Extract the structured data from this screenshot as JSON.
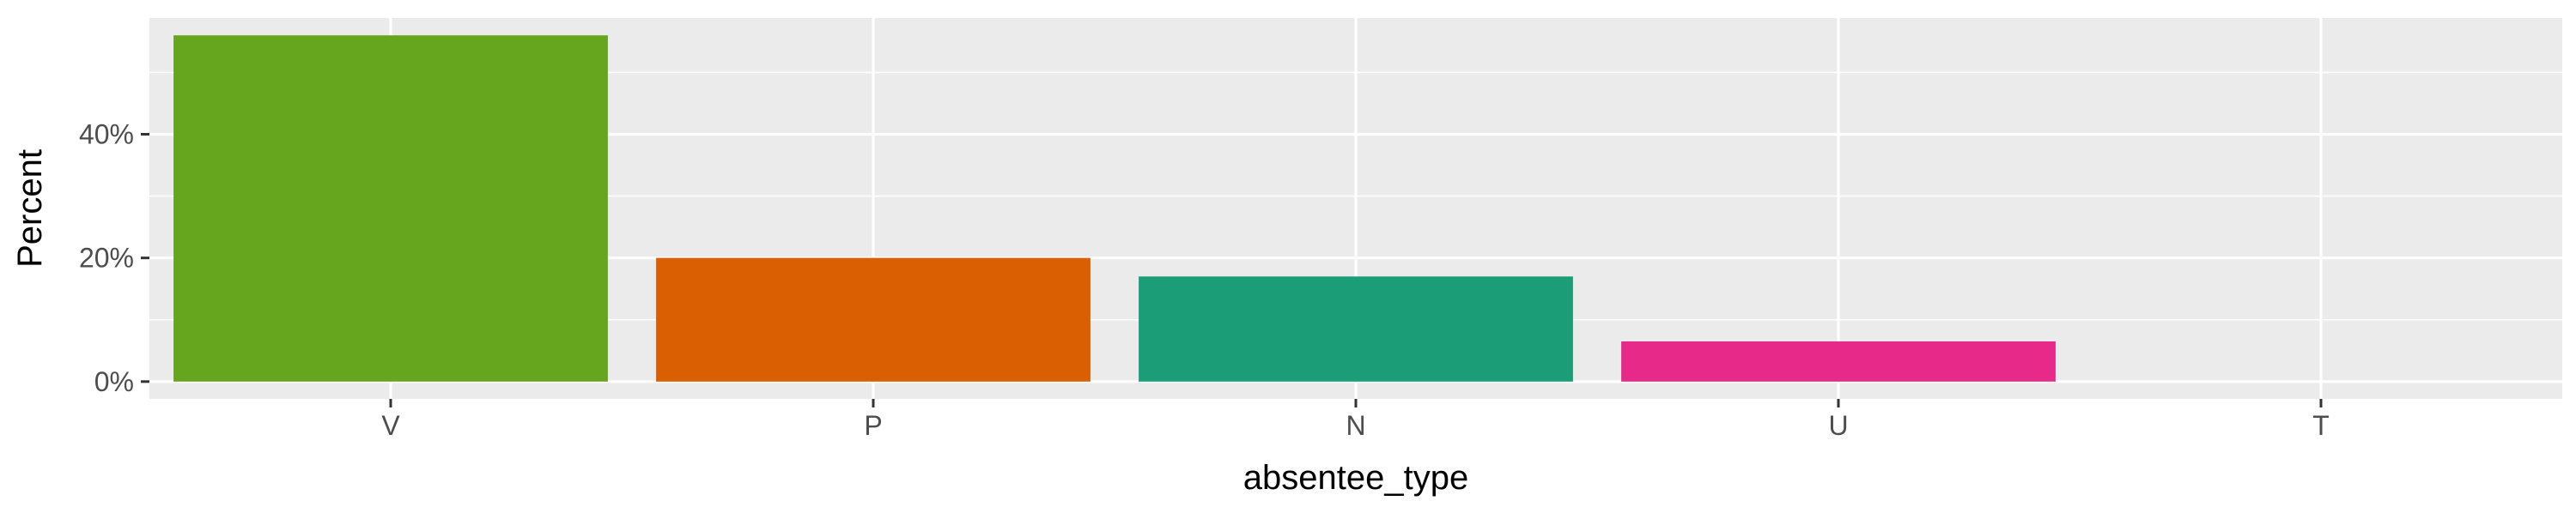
{
  "chart_data": {
    "type": "bar",
    "categories": [
      "V",
      "P",
      "N",
      "U",
      "T"
    ],
    "values": [
      56,
      20,
      17,
      6.5,
      0
    ],
    "colors": [
      "#66A61E",
      "#D95F02",
      "#1B9E77",
      "#E7298A",
      "#E6AB02"
    ],
    "xlabel": "absentee_type",
    "ylabel": "Percent",
    "ylim": [
      -2.8,
      58.8
    ],
    "y_ticks": [
      0,
      20,
      40
    ],
    "y_tick_labels": [
      "0%",
      "20%",
      "40%"
    ],
    "y_minor_ticks": [
      10,
      30,
      50
    ],
    "grid": true,
    "panel_background": "#EBEBEB",
    "grid_color": "#FFFFFF"
  }
}
